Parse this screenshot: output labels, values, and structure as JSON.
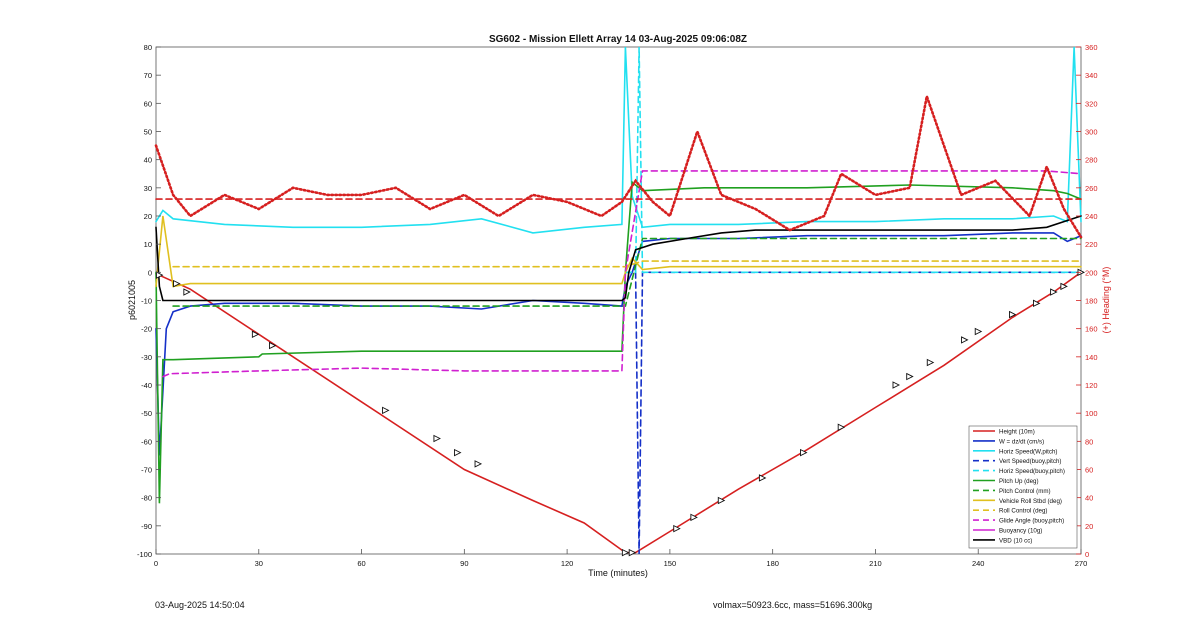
{
  "chart_data": {
    "type": "line",
    "title": "SG602 - Mission Ellett Array 14 03-Aug-2025 09:06:08Z",
    "xlabel": "Time (minutes)",
    "ylabel_left": "p6021005",
    "ylabel_right": "(+) Heading (°M)",
    "xlim": [
      0,
      270
    ],
    "ylim_left": [
      -100,
      80
    ],
    "ylim_right": [
      0,
      360
    ],
    "xticks": [
      0,
      30,
      60,
      90,
      120,
      150,
      180,
      210,
      240,
      270
    ],
    "yticks_left": [
      -100,
      -90,
      -80,
      -70,
      -60,
      -50,
      -40,
      -30,
      -20,
      -10,
      0,
      10,
      20,
      30,
      40,
      50,
      60,
      70,
      80
    ],
    "yticks_right": [
      0,
      20,
      40,
      60,
      80,
      100,
      120,
      140,
      160,
      180,
      200,
      220,
      240,
      260,
      280,
      300,
      320,
      340,
      360
    ],
    "grid": false,
    "legend_position": "bottom-right",
    "series": [
      {
        "name": "Height (10m)",
        "color": "#d62020",
        "style": "solid",
        "axis": "left",
        "x": [
          0,
          10,
          30,
          60,
          90,
          110,
          125,
          137,
          140,
          150,
          170,
          190,
          210,
          230,
          250,
          262,
          270
        ],
        "y": [
          -0.5,
          -6,
          -22,
          -46,
          -70,
          -81,
          -89,
          -99.5,
          -99.5,
          -92,
          -77,
          -63,
          -48,
          -33,
          -16,
          -7,
          0
        ]
      },
      {
        "name": "W = dz/dt (cm/s)",
        "color": "#1530c8",
        "style": "solid",
        "axis": "left",
        "x": [
          0,
          1,
          3,
          5,
          10,
          20,
          40,
          60,
          80,
          95,
          110,
          125,
          136,
          137,
          139,
          142,
          150,
          170,
          190,
          210,
          230,
          250,
          262,
          266,
          270
        ],
        "y": [
          -20,
          -65,
          -20,
          -14,
          -12,
          -11,
          -11,
          -12,
          -12,
          -13,
          -10,
          -11,
          -12,
          -5,
          0,
          11,
          12,
          12,
          13,
          13,
          13,
          14,
          14,
          11,
          13
        ]
      },
      {
        "name": "Horiz Speed(W,pitch)",
        "color": "#22e0f0",
        "style": "solid",
        "axis": "left",
        "x": [
          0,
          2,
          5,
          20,
          40,
          60,
          80,
          95,
          110,
          125,
          136,
          137,
          139,
          142,
          150,
          170,
          190,
          210,
          230,
          250,
          262,
          266,
          268,
          270
        ],
        "y": [
          18,
          22,
          19,
          17,
          16,
          16,
          17,
          19,
          14,
          16,
          17,
          80,
          27,
          16,
          17,
          17,
          18,
          18,
          19,
          19,
          20,
          18,
          80,
          18
        ]
      },
      {
        "name": "Vert Speed(buoy,pitch)",
        "color": "#1530c8",
        "style": "dashed",
        "axis": "left",
        "x": [
          137,
          140,
          141,
          142,
          150,
          270
        ],
        "y": [
          0,
          0,
          -100,
          0,
          0,
          0
        ]
      },
      {
        "name": "Horiz Speed(buoy,pitch)",
        "color": "#22e0f0",
        "style": "dashed",
        "axis": "left",
        "x": [
          137,
          140,
          141,
          142,
          150,
          270
        ],
        "y": [
          0,
          0,
          80,
          0,
          0,
          0
        ]
      },
      {
        "name": "Pitch Up (deg)",
        "color": "#20a020",
        "style": "solid",
        "axis": "left",
        "x": [
          0,
          1,
          2,
          5,
          30,
          31,
          60,
          90,
          120,
          136,
          137,
          139,
          142,
          160,
          190,
          220,
          250,
          262,
          266,
          270
        ],
        "y": [
          0,
          -82,
          -31,
          -31,
          -30,
          -29,
          -28,
          -28,
          -28,
          -28,
          0,
          32,
          29,
          30,
          30,
          31,
          30,
          29,
          28,
          26
        ]
      },
      {
        "name": "Pitch Control (mm)",
        "color": "#20a020",
        "style": "dashed",
        "axis": "left",
        "x": [
          5,
          30,
          60,
          90,
          120,
          137,
          142,
          200,
          270
        ],
        "y": [
          -12,
          -12,
          -12,
          -12,
          -12,
          -12,
          12,
          12,
          12
        ]
      },
      {
        "name": "Vehicle Roll Stbd (deg)",
        "color": "#e0c020",
        "style": "solid",
        "axis": "left",
        "x": [
          0,
          2,
          5,
          10,
          30,
          60,
          90,
          120,
          136,
          137,
          139,
          142,
          150,
          180,
          210,
          240,
          270
        ],
        "y": [
          -5,
          20,
          -5,
          -4,
          -4,
          -4,
          -4,
          -4,
          -4,
          0,
          5,
          1,
          2,
          2,
          2,
          2,
          2
        ]
      },
      {
        "name": "Roll Control (deg)",
        "color": "#e0c020",
        "style": "dashed",
        "axis": "left",
        "x": [
          5,
          30,
          60,
          90,
          120,
          137,
          142,
          270
        ],
        "y": [
          2,
          2,
          2,
          2,
          2,
          2,
          4,
          4
        ]
      },
      {
        "name": "Glide Angle (buoy,pitch)",
        "color": "#d020d0",
        "style": "dashed",
        "axis": "left",
        "x": [
          2,
          4,
          30,
          60,
          90,
          120,
          136,
          137,
          142,
          170,
          200,
          230,
          260,
          270
        ],
        "y": [
          -37,
          -36,
          -35,
          -34,
          -35,
          -35,
          -35,
          0,
          36,
          36,
          36,
          36,
          36,
          35
        ]
      },
      {
        "name": "Buoyancy (10g)",
        "color": "#d020d0",
        "style": "solid",
        "axis": "left",
        "x": [],
        "y": []
      },
      {
        "name": "VBD (10 cc)",
        "color": "#000000",
        "style": "solid",
        "axis": "left",
        "x": [
          0,
          1,
          2,
          136,
          137,
          138,
          140,
          145,
          155,
          165,
          175,
          200,
          230,
          250,
          260,
          265,
          270
        ],
        "y": [
          16,
          -5,
          -10,
          -10,
          -9,
          0,
          8,
          10,
          12,
          14,
          15,
          15,
          15,
          15,
          16,
          18,
          20
        ]
      },
      {
        "name": "",
        "color": "#d62020",
        "style": "dotted",
        "axis": "right",
        "x": [
          0,
          5,
          10,
          20,
          30,
          40,
          50,
          60,
          70,
          80,
          90,
          100,
          110,
          120,
          130,
          136,
          140,
          145,
          150,
          158,
          165,
          175,
          185,
          195,
          200,
          210,
          220,
          225,
          235,
          245,
          255,
          260,
          265,
          270
        ],
        "y": [
          290,
          255,
          240,
          255,
          245,
          260,
          255,
          255,
          260,
          245,
          255,
          240,
          255,
          250,
          240,
          250,
          265,
          250,
          240,
          300,
          255,
          245,
          230,
          240,
          270,
          255,
          260,
          325,
          255,
          265,
          240,
          275,
          245,
          225
        ]
      },
      {
        "name": "",
        "color": "#d62020",
        "style": "dashed",
        "axis": "right",
        "x": [
          0,
          270
        ],
        "y": [
          252,
          252
        ]
      }
    ],
    "markers": {
      "x": [
        1,
        6,
        9,
        29,
        34,
        67,
        82,
        88,
        94,
        137,
        139,
        152,
        157,
        165,
        177,
        189,
        200,
        216,
        220,
        226,
        236,
        240,
        250,
        257,
        262,
        265,
        270
      ],
      "y": [
        -1,
        -4,
        -7,
        -22,
        -26,
        -49,
        -59,
        -64,
        -68,
        -99.5,
        -99.5,
        -91,
        -87,
        -81,
        -73,
        -64,
        -55,
        -40,
        -37,
        -32,
        -24,
        -21,
        -15,
        -11,
        -7,
        -5,
        0
      ]
    },
    "footer_left": "03-Aug-2025 14:50:04",
    "footer_right": "volmax=50923.6cc, mass=51696.300kg"
  }
}
